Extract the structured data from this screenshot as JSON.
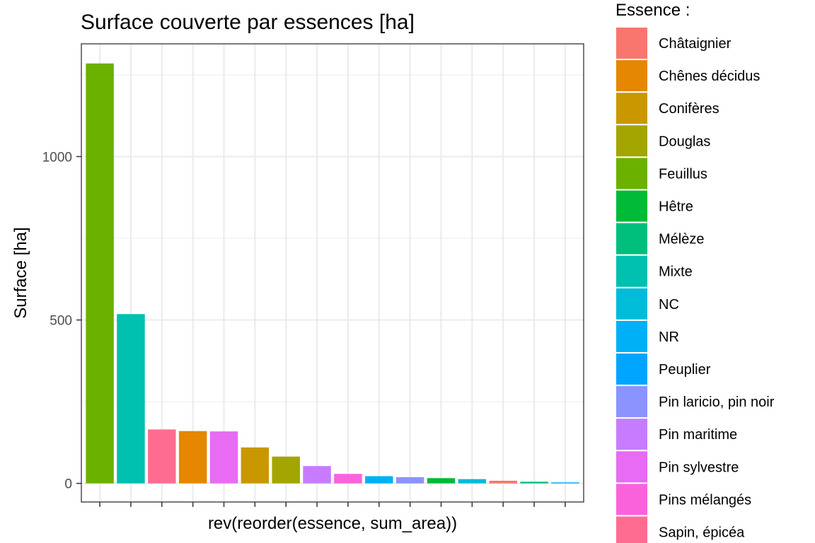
{
  "chart_data": {
    "type": "bar",
    "title": "Surface couverte par essences [ha]",
    "xlabel": "rev(reorder(essence, sum_area))",
    "ylabel": "Surface [ha]",
    "ylim": [
      0,
      1300
    ],
    "yticks": [
      0,
      500,
      1000
    ],
    "grid": true,
    "legend_title": "Essence :",
    "legend_position": "right",
    "legend": [
      {
        "label": "Châtaignier",
        "color": "#F8766D"
      },
      {
        "label": "Chênes décidus",
        "color": "#E58700"
      },
      {
        "label": "Conifères",
        "color": "#C99800"
      },
      {
        "label": "Douglas",
        "color": "#A3A500"
      },
      {
        "label": "Feuillus",
        "color": "#6BB100"
      },
      {
        "label": "Hêtre",
        "color": "#00BA38"
      },
      {
        "label": "Mélèze",
        "color": "#00BF7D"
      },
      {
        "label": "Mixte",
        "color": "#00C0AF"
      },
      {
        "label": "NC",
        "color": "#00BCD8"
      },
      {
        "label": "NR",
        "color": "#00B0F6"
      },
      {
        "label": "Peuplier",
        "color": "#00A5FF"
      },
      {
        "label": "Pin laricio, pin noir",
        "color": "#8B93FF"
      },
      {
        "label": "Pin maritime",
        "color": "#C77CFF"
      },
      {
        "label": "Pin sylvestre",
        "color": "#E76BF3"
      },
      {
        "label": "Pins mélangés",
        "color": "#FA62DB"
      },
      {
        "label": "Sapin, épicéa",
        "color": "#FF6C91"
      }
    ],
    "bars": [
      {
        "essence": "Feuillus",
        "value": 1285
      },
      {
        "essence": "Mixte",
        "value": 518
      },
      {
        "essence": "Sapin, épicéa",
        "value": 165
      },
      {
        "essence": "Chênes décidus",
        "value": 160
      },
      {
        "essence": "Pin sylvestre",
        "value": 159
      },
      {
        "essence": "Conifères",
        "value": 110
      },
      {
        "essence": "Douglas",
        "value": 82
      },
      {
        "essence": "Pin maritime",
        "value": 53
      },
      {
        "essence": "Pins mélangés",
        "value": 29
      },
      {
        "essence": "NR",
        "value": 22
      },
      {
        "essence": "Pin laricio, pin noir",
        "value": 19
      },
      {
        "essence": "Hêtre",
        "value": 16
      },
      {
        "essence": "NC",
        "value": 13
      },
      {
        "essence": "Châtaignier",
        "value": 8
      },
      {
        "essence": "Mélèze",
        "value": 5
      },
      {
        "essence": "Peuplier",
        "value": 3
      }
    ]
  }
}
